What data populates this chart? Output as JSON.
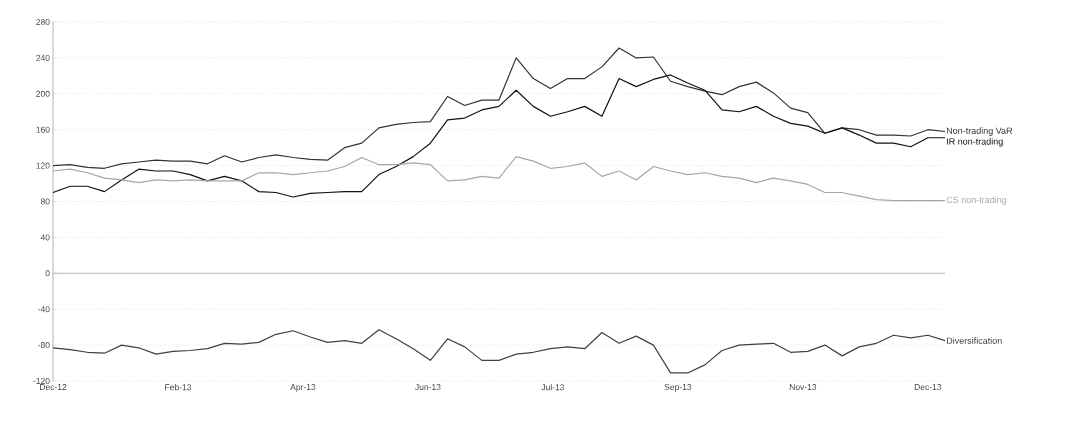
{
  "chart_data": {
    "type": "line",
    "x": [
      "2012-12-31",
      "2013-01-07",
      "2013-01-14",
      "2013-01-21",
      "2013-01-28",
      "2013-02-04",
      "2013-02-11",
      "2013-02-18",
      "2013-02-25",
      "2013-03-04",
      "2013-03-11",
      "2013-03-18",
      "2013-03-25",
      "2013-04-01",
      "2013-04-08",
      "2013-04-15",
      "2013-04-22",
      "2013-04-29",
      "2013-05-06",
      "2013-05-13",
      "2013-05-20",
      "2013-05-27",
      "2013-06-03",
      "2013-06-10",
      "2013-06-17",
      "2013-06-24",
      "2013-07-01",
      "2013-07-08",
      "2013-07-15",
      "2013-07-22",
      "2013-07-29",
      "2013-08-05",
      "2013-08-12",
      "2013-08-19",
      "2013-08-26",
      "2013-09-02",
      "2013-09-09",
      "2013-09-16",
      "2013-09-23",
      "2013-09-30",
      "2013-10-07",
      "2013-10-14",
      "2013-10-21",
      "2013-10-28",
      "2013-11-04",
      "2013-11-11",
      "2013-11-18",
      "2013-11-25",
      "2013-12-02",
      "2013-12-09",
      "2013-12-16",
      "2013-12-23",
      "2013-12-30"
    ],
    "series": [
      {
        "name": "Non-trading VaR",
        "color": "#333333",
        "values": [
          120,
          121,
          118,
          117,
          122,
          124,
          126,
          125,
          125,
          122,
          131,
          124,
          129,
          132,
          129,
          127,
          126,
          140,
          145,
          162,
          166,
          168,
          169,
          197,
          187,
          193,
          193,
          240,
          217,
          206,
          217,
          217,
          230,
          251,
          240,
          241,
          214,
          208,
          203,
          199,
          208,
          213,
          201,
          184,
          179,
          156,
          162,
          160,
          154,
          154,
          153,
          160,
          158
        ]
      },
      {
        "name": "IR non-trading",
        "color": "#111111",
        "values": [
          90,
          97,
          97,
          91,
          104,
          116,
          114,
          114,
          110,
          103,
          108,
          103,
          91,
          90,
          85,
          89,
          90,
          91,
          91,
          110,
          119,
          130,
          145,
          171,
          173,
          182,
          186,
          204,
          186,
          175,
          180,
          186,
          175,
          217,
          208,
          216,
          221,
          212,
          204,
          182,
          180,
          186,
          175,
          167,
          164,
          156,
          162,
          154,
          145,
          145,
          141,
          151,
          151
        ]
      },
      {
        "name": "CS non-trading",
        "color": "#a6a6a6",
        "values": [
          114,
          116,
          112,
          106,
          104,
          101,
          104,
          103,
          104,
          103,
          103,
          103,
          112,
          112,
          110,
          112,
          114,
          119,
          129,
          121,
          121,
          123,
          121,
          103,
          104,
          108,
          106,
          130,
          125,
          117,
          119,
          123,
          108,
          114,
          104,
          119,
          114,
          110,
          112,
          108,
          106,
          101,
          106,
          103,
          99,
          90,
          90,
          86,
          82,
          81,
          81,
          81,
          81
        ]
      },
      {
        "name": "Diversification",
        "color": "#404040",
        "values": [
          -83,
          -85,
          -88,
          -89,
          -80,
          -83,
          -90,
          -87,
          -86,
          -84,
          -78,
          -79,
          -77,
          -68,
          -64,
          -71,
          -77,
          -75,
          -78,
          -63,
          -73,
          -84,
          -97,
          -73,
          -82,
          -97,
          -97,
          -90,
          -88,
          -84,
          -82,
          -84,
          -66,
          -78,
          -70,
          -80,
          -111,
          -111,
          -102,
          -86,
          -80,
          -79,
          -78,
          -88,
          -87,
          -80,
          -92,
          -82,
          -78,
          -69,
          -72,
          -69,
          -75
        ]
      }
    ],
    "xlim": [
      "2012-12-31",
      "2013-12-30"
    ],
    "xticks": [
      {
        "value": "2012-12-31",
        "label": "Dec-12"
      },
      {
        "value": "2013-02-20",
        "label": "Feb-13"
      },
      {
        "value": "2013-04-12",
        "label": "Apr-13"
      },
      {
        "value": "2013-06-02",
        "label": "Jun-13"
      },
      {
        "value": "2013-07-23",
        "label": "Jul-13"
      },
      {
        "value": "2013-09-12",
        "label": "Sep-13"
      },
      {
        "value": "2013-11-02",
        "label": "Nov-13"
      },
      {
        "value": "2013-12-23",
        "label": "Dec-13"
      }
    ],
    "ylim": [
      -120,
      280
    ],
    "yticks": [
      -120,
      -80,
      -40,
      0,
      40,
      80,
      120,
      160,
      200,
      240,
      280
    ],
    "grid": "y",
    "ref_lines": [
      {
        "axis": "y",
        "value": 0,
        "color": "#a6a6a6",
        "line_style": "solid"
      }
    ]
  }
}
